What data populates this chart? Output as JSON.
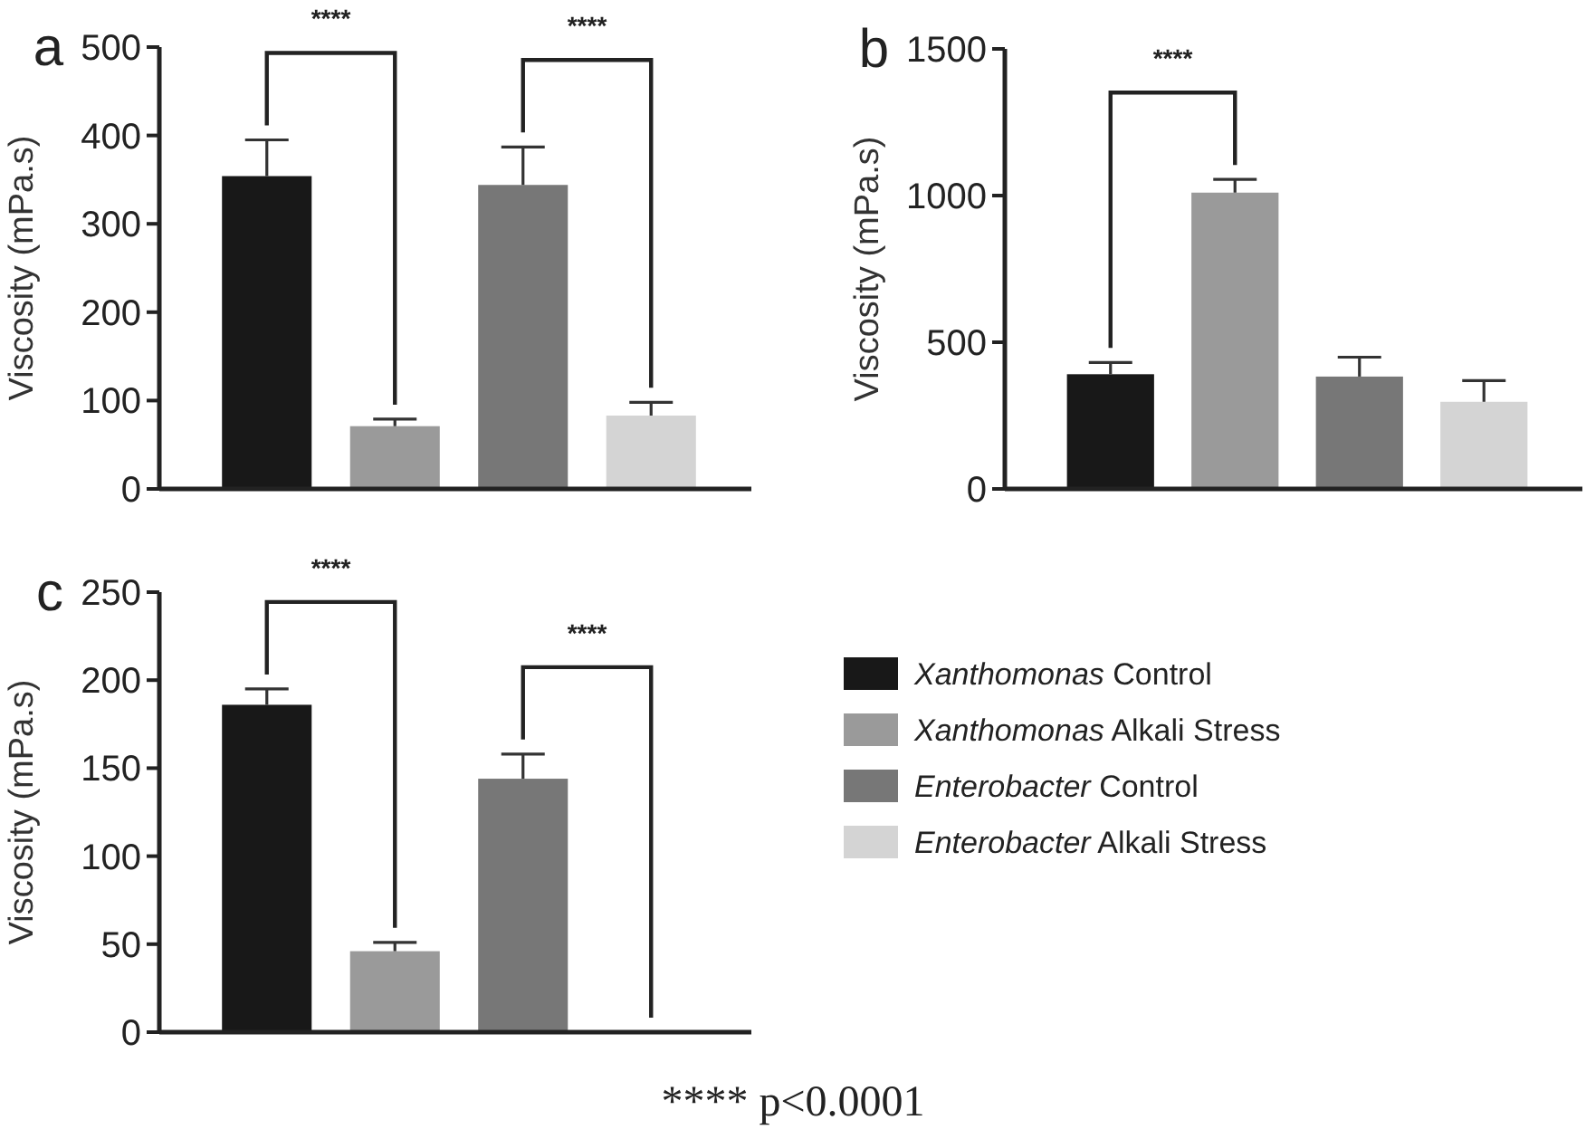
{
  "chart_data": [
    {
      "type": "bar",
      "title": "a",
      "ylabel": "Viscosity (mPa.s)",
      "categories": [
        null
      ],
      "ylim": [
        0,
        500
      ],
      "yticks": [
        0,
        100,
        200,
        300,
        400,
        500
      ],
      "annotations": [
        "****",
        "****"
      ],
      "series": [
        {
          "color": "#181818",
          "values": [
            354
          ],
          "errors": [
            [
              354,
              395
            ]
          ]
        },
        {
          "color": "#9a9a9a",
          "values": [
            71
          ],
          "errors": [
            [
              71,
              79
            ]
          ]
        },
        {
          "color": "#777777",
          "values": [
            344
          ],
          "errors": [
            [
              344,
              387
            ]
          ]
        },
        {
          "color": "#d4d4d4",
          "values": [
            83
          ],
          "errors": [
            [
              83,
              98
            ]
          ]
        }
      ]
    },
    {
      "type": "bar",
      "title": "b",
      "ylabel": "Viscosity (mPa.s)",
      "categories": [
        null
      ],
      "ylim": [
        0,
        1500
      ],
      "yticks": [
        0,
        500,
        1000,
        1500
      ],
      "annotations": [
        "****"
      ],
      "series": [
        {
          "color": "#181818",
          "values": [
            391
          ],
          "errors": [
            [
              391,
              431
            ]
          ]
        },
        {
          "color": "#9a9a9a",
          "values": [
            1010
          ],
          "errors": [
            [
              1010,
              1055
            ]
          ]
        },
        {
          "color": "#777777",
          "values": [
            383
          ],
          "errors": [
            [
              383,
              449
            ]
          ]
        },
        {
          "color": "#d4d4d4",
          "values": [
            297
          ],
          "errors": [
            [
              297,
              369
            ]
          ]
        }
      ]
    },
    {
      "type": "bar",
      "title": "c",
      "ylabel": "Viscosity (mPa.s)",
      "categories": [
        null
      ],
      "ylim": [
        0,
        250
      ],
      "yticks": [
        0,
        50,
        100,
        150,
        200,
        250
      ],
      "annotations": [
        "****",
        "****",
        "**** p<0.0001"
      ],
      "legend": "right",
      "series": [
        {
          "name": "Xanthomonas Control",
          "color": "#181818",
          "values": [
            186
          ],
          "errors": [
            [
              186,
              195
            ]
          ]
        },
        {
          "name": "Xanthomonas Alkali Stress",
          "color": "#9a9a9a",
          "values": [
            46
          ],
          "errors": [
            [
              46,
              51
            ]
          ]
        },
        {
          "name": "Enterobacter Control",
          "color": "#777777",
          "values": [
            144
          ],
          "errors": [
            [
              144,
              158
            ]
          ]
        },
        {
          "name": "Enterobacter Alkali Stress",
          "color": "#d4d4d4",
          "values": [
            null
          ],
          "errors": [
            null
          ]
        }
      ]
    }
  ]
}
